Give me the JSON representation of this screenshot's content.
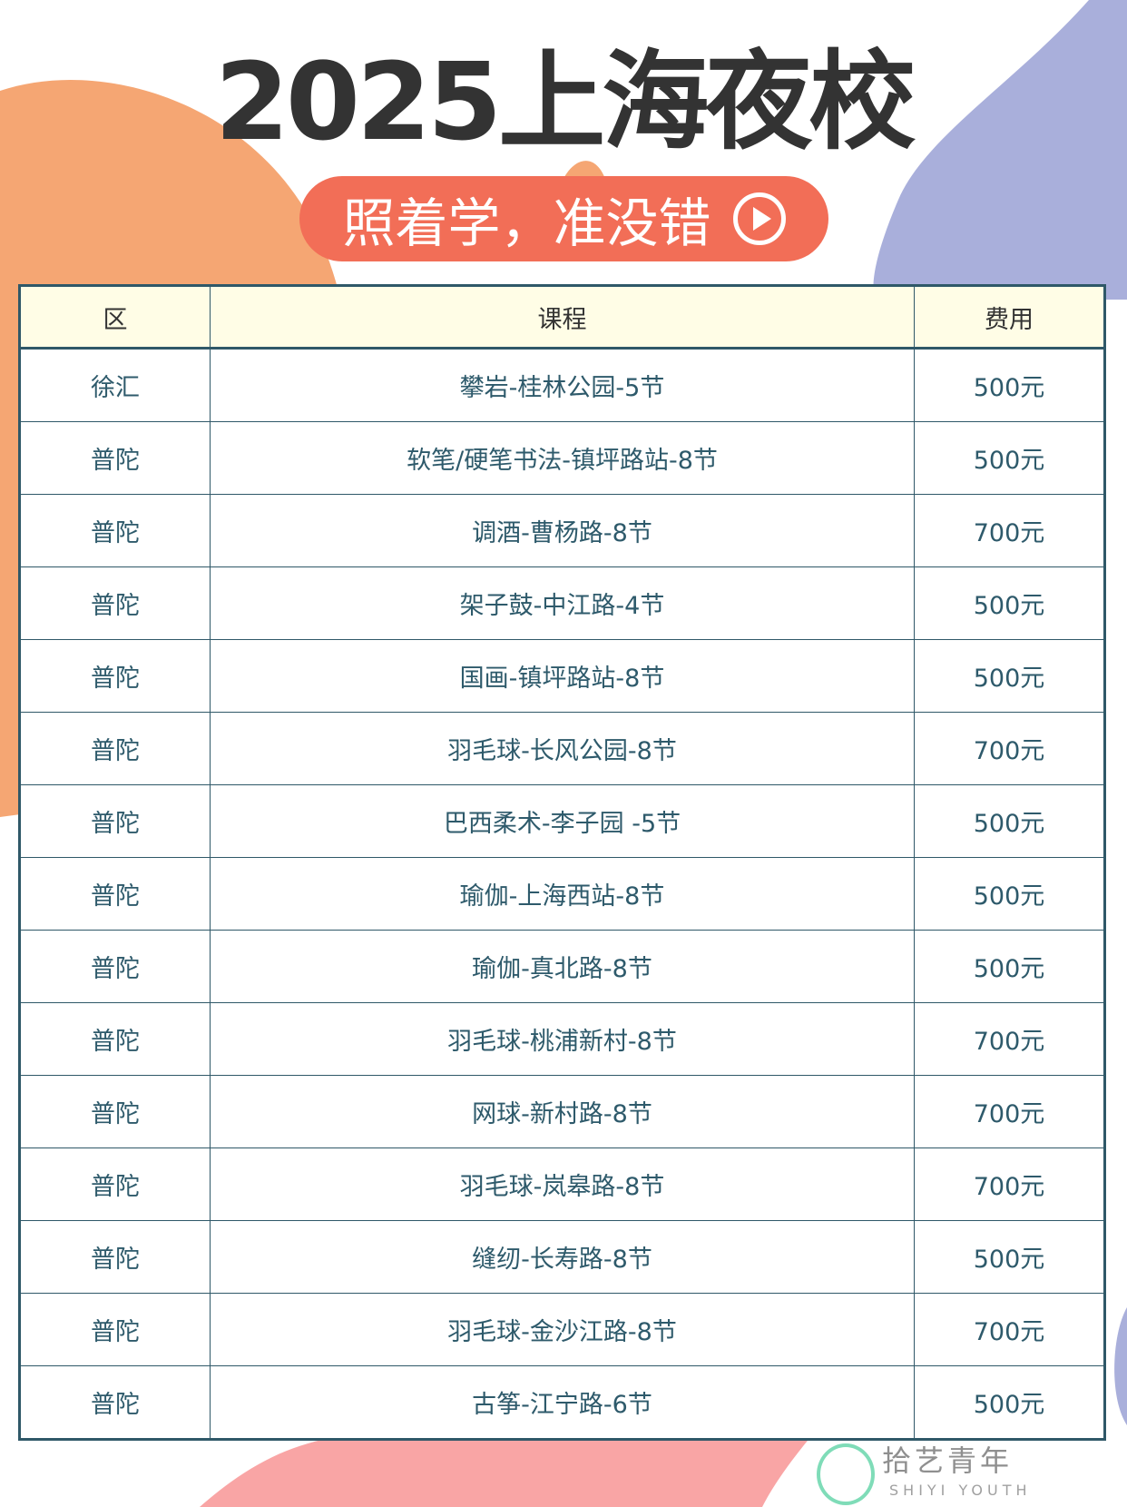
{
  "header": {
    "title": "2025上海夜校",
    "slogan": "照着学，准没错",
    "slogan_icon": "play-circle-icon"
  },
  "table": {
    "columns": [
      "区",
      "课程",
      "费用"
    ],
    "rows": [
      [
        "徐汇",
        "攀岩-桂林公园-5节",
        "500元"
      ],
      [
        "普陀",
        "软笔/硬笔书法-镇坪路站-8节",
        "500元"
      ],
      [
        "普陀",
        "调酒-曹杨路-8节",
        "700元"
      ],
      [
        "普陀",
        "架子鼓-中江路-4节",
        "500元"
      ],
      [
        "普陀",
        "国画-镇坪路站-8节",
        "500元"
      ],
      [
        "普陀",
        "羽毛球-长风公园-8节",
        "700元"
      ],
      [
        "普陀",
        "巴西柔术-李子园 -5节",
        "500元"
      ],
      [
        "普陀",
        "瑜伽-上海西站-8节",
        "500元"
      ],
      [
        "普陀",
        "瑜伽-真北路-8节",
        "500元"
      ],
      [
        "普陀",
        "羽毛球-桃浦新村-8节",
        "700元"
      ],
      [
        "普陀",
        "网球-新村路-8节",
        "700元"
      ],
      [
        "普陀",
        "羽毛球-岚皋路-8节",
        "700元"
      ],
      [
        "普陀",
        "缝纫-长寿路-8节",
        "500元"
      ],
      [
        "普陀",
        "羽毛球-金沙江路-8节",
        "700元"
      ],
      [
        "普陀",
        "古筝-江宁路-6节",
        "500元"
      ]
    ]
  },
  "watermark": {
    "logo_text": "拾艺",
    "name": "拾艺青年",
    "english": "SHIYI YOUTH"
  },
  "colors": {
    "pill": "#f26e57",
    "header_bg": "#fffde6",
    "border": "#2f5868",
    "text": "#2e5a6b"
  }
}
